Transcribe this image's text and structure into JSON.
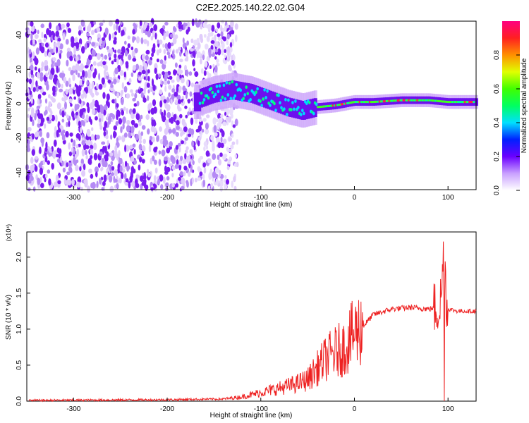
{
  "title": "C2E2.2025.140.22.02.G04",
  "chart_data": [
    {
      "type": "heatmap",
      "xlabel": "Height of straight line (km)",
      "ylabel": "Frequency (Hz)",
      "xlim": [
        -350,
        130
      ],
      "ylim": [
        -50,
        48
      ],
      "xticks": [
        -300,
        -200,
        -100,
        0,
        100
      ],
      "yticks": [
        -40,
        -20,
        0,
        20,
        40
      ],
      "colorbar": {
        "label": "Normalized spectral amplitude",
        "range": [
          0,
          1
        ],
        "ticks": [
          "0.0",
          "0.2",
          "0.4",
          "0.6",
          "0.8"
        ]
      },
      "ridge": {
        "x": [
          -165,
          -150,
          -130,
          -110,
          -90,
          -70,
          -55,
          -40,
          -20,
          0,
          20,
          50,
          80,
          100,
          130
        ],
        "y": [
          3,
          6,
          8,
          6,
          2,
          -2,
          -4,
          -2,
          -1,
          1,
          1,
          2,
          2,
          1,
          1
        ]
      },
      "noise_region_x": [
        -350,
        -140
      ]
    },
    {
      "type": "line",
      "xlabel": "Height of straight line (km)",
      "ylabel": "SNR (10 * v/v)",
      "multiplier": "(x10⁴)",
      "xlim": [
        -350,
        130
      ],
      "ylim": [
        0,
        2.35
      ],
      "xticks": [
        -300,
        -200,
        -100,
        0,
        100
      ],
      "yticks": [
        "0.0",
        "0.5",
        "1.0",
        "1.5",
        "2.0"
      ],
      "series": [
        {
          "color": "#ee2222",
          "x": [
            -350,
            -200,
            -140,
            -120,
            -100,
            -80,
            -60,
            -50,
            -40,
            -30,
            -20,
            -10,
            0,
            10,
            20,
            40,
            60,
            80,
            90,
            93,
            95,
            96,
            97,
            98,
            100,
            110,
            130
          ],
          "y": [
            0.01,
            0.02,
            0.03,
            0.06,
            0.12,
            0.18,
            0.25,
            0.3,
            0.45,
            0.6,
            0.68,
            0.75,
            0.95,
            1.05,
            1.2,
            1.28,
            1.3,
            1.28,
            1.3,
            1.45,
            2.1,
            0.3,
            2.3,
            1.25,
            1.28,
            1.25,
            1.25
          ]
        }
      ]
    }
  ]
}
